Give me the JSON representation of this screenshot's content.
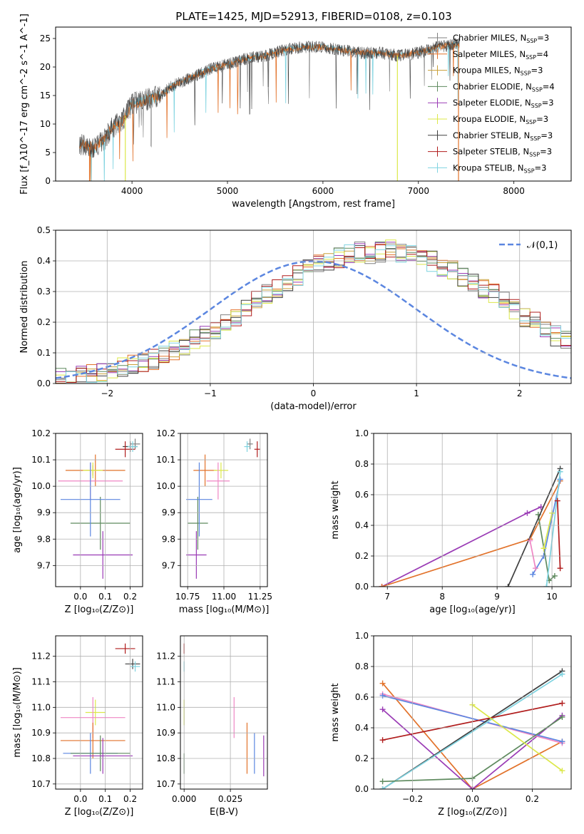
{
  "figure": {
    "title": "PLATE=1425, MJD=52913, FIBERID=0108, z=0.103"
  },
  "series_styles": [
    {
      "name": "Chabrier MILES",
      "nssp": "3",
      "color": "#808080"
    },
    {
      "name": "Salpeter MILES",
      "nssp": "4",
      "color": "#e2722a"
    },
    {
      "name": "Kroupa MILES",
      "nssp": "3",
      "color": "#c9a13a"
    },
    {
      "name": "Chabrier ELODIE",
      "nssp": "4",
      "color": "#5e8a5e"
    },
    {
      "name": "Salpeter ELODIE",
      "nssp": "3",
      "color": "#9a3bb5"
    },
    {
      "name": "Kroupa ELODIE",
      "nssp": "3",
      "color": "#dce84a"
    },
    {
      "name": "Chabrier STELIB",
      "nssp": "3",
      "color": "#404040"
    },
    {
      "name": "Salpeter STELIB",
      "nssp": "3",
      "color": "#b01c1c"
    },
    {
      "name": "Kroupa STELIB",
      "nssp": "3",
      "color": "#7fd3e0"
    }
  ],
  "chart_data": [
    {
      "id": "spectrum",
      "type": "line",
      "xlabel": "wavelength [Angstrom, rest frame]",
      "ylabel": "Flux [f_λ10^-17 erg cm^-2 s^-1 A^-1]",
      "xlim": [
        3200,
        8600
      ],
      "ylim": [
        0,
        27
      ],
      "xticks": [
        4000,
        5000,
        6000,
        7000,
        8000
      ],
      "yticks": [
        0,
        5,
        10,
        15,
        20,
        25
      ],
      "grid": false,
      "legend_position": "right",
      "continuum": {
        "x": [
          3450,
          3600,
          3700,
          3800,
          3900,
          4000,
          4100,
          4200,
          4300,
          4400,
          4600,
          4800,
          5000,
          5200,
          5400,
          5600,
          5800,
          6000,
          6200,
          6400,
          6600,
          6800,
          7000,
          7200,
          7400
        ],
        "y": [
          6.5,
          5.8,
          7.0,
          9.5,
          10.5,
          13.5,
          14.0,
          14.5,
          15.0,
          16.5,
          18.0,
          19.5,
          20.5,
          21.5,
          22.0,
          23.0,
          23.5,
          23.5,
          23.0,
          22.5,
          22.5,
          22.0,
          22.5,
          23.5,
          24.0
        ]
      },
      "dips": [
        {
          "x": 3555,
          "y": 0.0,
          "series": "Salpeter MILES"
        },
        {
          "x": 3930,
          "y": 0.0,
          "series": "Kroupa ELODIE"
        },
        {
          "x": 6780,
          "y": 0.0,
          "series": "Kroupa ELODIE"
        },
        {
          "x": 7420,
          "y": 0.0,
          "series": "Salpeter MILES"
        }
      ]
    },
    {
      "id": "residual-histogram",
      "type": "bar",
      "xlabel": "(data-model)/error",
      "ylabel": "Normed distribution",
      "xlim": [
        -2.5,
        2.5
      ],
      "ylim": [
        0,
        0.5
      ],
      "xticks": [
        -2,
        -1,
        0,
        1,
        2
      ],
      "yticks": [
        0.0,
        0.1,
        0.2,
        0.3,
        0.4,
        0.5
      ],
      "grid": true,
      "legend_position": "top-right",
      "legend": [
        "𝒩(0,1)"
      ],
      "bin_width": 0.1,
      "bin_start": -2.5,
      "base_series": "Chabrier MILES",
      "base_values": [
        0.02,
        0.025,
        0.03,
        0.035,
        0.04,
        0.045,
        0.05,
        0.06,
        0.07,
        0.08,
        0.09,
        0.105,
        0.12,
        0.14,
        0.155,
        0.175,
        0.2,
        0.22,
        0.245,
        0.27,
        0.29,
        0.31,
        0.33,
        0.35,
        0.37,
        0.385,
        0.4,
        0.41,
        0.42,
        0.43,
        0.42,
        0.43,
        0.44,
        0.43,
        0.425,
        0.41,
        0.4,
        0.38,
        0.37,
        0.35,
        0.33,
        0.31,
        0.29,
        0.27,
        0.24,
        0.22,
        0.2,
        0.175,
        0.155,
        0.135,
        0.115,
        0.1,
        0.085,
        0.07,
        0.06,
        0.05,
        0.045,
        0.04,
        0.035,
        0.03
      ],
      "gaussian": {
        "mean": 0,
        "sigma": 1,
        "name": "𝒩(0,1)"
      }
    },
    {
      "id": "age-vs-Z",
      "type": "scatter",
      "xlabel": "Z [log₁₀(Z/Z⊙)]",
      "ylabel": "age [log₁₀(age/yr)]",
      "xlim": [
        -0.1,
        0.25
      ],
      "ylim": [
        9.62,
        10.2
      ],
      "xticks": [
        0.0,
        0.1,
        0.2
      ],
      "yticks": [
        9.7,
        9.8,
        9.9,
        10.0,
        10.1,
        10.2
      ],
      "grid": true,
      "points": [
        {
          "series": "Chabrier MILES",
          "x": 0.22,
          "y": 10.16,
          "xerr": 0.02,
          "yerr": 0.02
        },
        {
          "series": "Salpeter MILES",
          "x": 0.06,
          "y": 10.06,
          "xerr": 0.12,
          "yerr": 0.06
        },
        {
          "series": "Kroupa MILES",
          "x": 0.05,
          "y": 10.06,
          "xerr": 0.03,
          "yerr": 0.02
        },
        {
          "series": "Chabrier ELODIE",
          "x": 0.08,
          "y": 9.86,
          "xerr": 0.12,
          "yerr": 0.1
        },
        {
          "series": "Salpeter ELODIE",
          "x": 0.09,
          "y": 9.74,
          "xerr": 0.12,
          "yerr": 0.09
        },
        {
          "series": "Kroupa ELODIE",
          "x": 0.05,
          "y": 10.06,
          "xerr": 0.04,
          "yerr": 0.03
        },
        {
          "series": "Chabrier STELIB",
          "x": 0.2,
          "y": 10.15,
          "xerr": 0.03,
          "yerr": 0.02
        },
        {
          "series": "Salpeter STELIB",
          "x": 0.18,
          "y": 10.14,
          "xerr": 0.04,
          "yerr": 0.03
        },
        {
          "series": "Kroupa STELIB",
          "x": 0.21,
          "y": 10.15,
          "xerr": 0.02,
          "yerr": 0.02
        },
        {
          "series": "Salpeter ELODIE",
          "x": 0.04,
          "y": 10.02,
          "xerr": 0.13,
          "yerr": 0.07,
          "color": "#ef86c4"
        },
        {
          "series": "Kroupa MILES",
          "x": 0.04,
          "y": 9.95,
          "xerr": 0.12,
          "yerr": 0.14,
          "color": "#5b86e0"
        }
      ]
    },
    {
      "id": "age-vs-mass",
      "type": "scatter",
      "xlabel": "mass [log₁₀(M/M⊙)]",
      "ylabel": "",
      "xlim": [
        10.7,
        11.3
      ],
      "ylim": [
        9.62,
        10.2
      ],
      "xticks": [
        10.75,
        11.0,
        11.25
      ],
      "yticks": [
        9.7,
        9.8,
        9.9,
        10.0,
        10.1,
        10.2
      ],
      "grid": true,
      "points": [
        {
          "series": "Chabrier MILES",
          "x": 11.18,
          "y": 10.16,
          "xerr": 0.02,
          "yerr": 0.02
        },
        {
          "series": "Salpeter MILES",
          "x": 10.87,
          "y": 10.06,
          "xerr": 0.08,
          "yerr": 0.06
        },
        {
          "series": "Kroupa ELODIE",
          "x": 10.98,
          "y": 10.06,
          "xerr": 0.05,
          "yerr": 0.03
        },
        {
          "series": "Chabrier ELODIE",
          "x": 10.82,
          "y": 9.86,
          "xerr": 0.07,
          "yerr": 0.1
        },
        {
          "series": "Salpeter ELODIE",
          "x": 10.81,
          "y": 9.74,
          "xerr": 0.07,
          "yerr": 0.09
        },
        {
          "series": "Salpeter STELIB",
          "x": 11.23,
          "y": 10.14,
          "xerr": 0.02,
          "yerr": 0.03
        },
        {
          "series": "Kroupa STELIB",
          "x": 11.16,
          "y": 10.15,
          "xerr": 0.02,
          "yerr": 0.02
        },
        {
          "series": "Salpeter ELODIE",
          "x": 10.96,
          "y": 10.02,
          "xerr": 0.08,
          "yerr": 0.07,
          "color": "#ef86c4"
        },
        {
          "series": "Kroupa MILES",
          "x": 10.83,
          "y": 9.95,
          "xerr": 0.09,
          "yerr": 0.14,
          "color": "#5b86e0"
        }
      ]
    },
    {
      "id": "weight-vs-age",
      "type": "line",
      "xlabel": "age [log₁₀(age/yr)]",
      "ylabel": "mass weight",
      "xlim": [
        6.75,
        10.35
      ],
      "ylim": [
        0,
        1
      ],
      "xticks": [
        7,
        8,
        9,
        10
      ],
      "yticks": [
        0.0,
        0.2,
        0.4,
        0.6,
        0.8,
        1.0
      ],
      "grid": true,
      "series": [
        {
          "name": "Salpeter ELODIE",
          "x": [
            6.9,
            9.55,
            9.8
          ],
          "y": [
            0.0,
            0.48,
            0.52
          ]
        },
        {
          "name": "Salpeter MILES",
          "x": [
            6.9,
            9.6,
            10.15
          ],
          "y": [
            0.0,
            0.31,
            0.69
          ]
        },
        {
          "name": "Kroupa MILES",
          "x": [
            9.65,
            9.85,
            10.15
          ],
          "y": [
            0.08,
            0.2,
            0.7
          ],
          "color": "#5b86e0"
        },
        {
          "name": "Chabrier ELODIE",
          "x": [
            9.75,
            9.95,
            10.05
          ],
          "y": [
            0.47,
            0.04,
            0.07
          ]
        },
        {
          "name": "Chabrier STELIB",
          "x": [
            9.2,
            10.15
          ],
          "y": [
            0.0,
            0.77
          ]
        },
        {
          "name": "Kroupa STELIB",
          "x": [
            9.9,
            10.15
          ],
          "y": [
            0.0,
            0.75
          ]
        },
        {
          "name": "Salpeter STELIB",
          "x": [
            10.1,
            10.15
          ],
          "y": [
            0.56,
            0.12
          ]
        },
        {
          "name": "Kroupa ELODIE",
          "x": [
            9.85,
            10.0
          ],
          "y": [
            0.25,
            0.48
          ]
        },
        {
          "name": "Salpeter ELODIE",
          "x": [
            9.6,
            9.7
          ],
          "y": [
            0.3,
            0.12
          ],
          "color": "#ef86c4"
        }
      ]
    },
    {
      "id": "mass-vs-Z",
      "type": "scatter",
      "xlabel": "Z [log₁₀(Z/Z⊙)]",
      "ylabel": "mass [log₁₀(M/M⊙)]",
      "xlim": [
        -0.1,
        0.25
      ],
      "ylim": [
        10.68,
        11.28
      ],
      "xticks": [
        0.0,
        0.1,
        0.2
      ],
      "yticks": [
        10.7,
        10.8,
        10.9,
        11.0,
        11.1,
        11.2
      ],
      "grid": true,
      "points": [
        {
          "series": "Salpeter STELIB",
          "x": 0.18,
          "y": 11.23,
          "xerr": 0.04,
          "yerr": 0.02
        },
        {
          "series": "Chabrier STELIB",
          "x": 0.21,
          "y": 11.17,
          "xerr": 0.03,
          "yerr": 0.02
        },
        {
          "series": "Kroupa STELIB",
          "x": 0.22,
          "y": 11.16,
          "xerr": 0.02,
          "yerr": 0.02
        },
        {
          "series": "Kroupa ELODIE",
          "x": 0.06,
          "y": 10.98,
          "xerr": 0.04,
          "yerr": 0.05
        },
        {
          "series": "Salpeter ELODIE",
          "x": 0.05,
          "y": 10.96,
          "xerr": 0.13,
          "yerr": 0.08,
          "color": "#ef86c4"
        },
        {
          "series": "Salpeter MILES",
          "x": 0.05,
          "y": 10.87,
          "xerr": 0.13,
          "yerr": 0.07
        },
        {
          "series": "Kroupa MILES",
          "x": 0.04,
          "y": 10.82,
          "xerr": 0.11,
          "yerr": 0.08,
          "color": "#5b86e0"
        },
        {
          "series": "Chabrier ELODIE",
          "x": 0.08,
          "y": 10.82,
          "xerr": 0.12,
          "yerr": 0.07
        },
        {
          "series": "Salpeter ELODIE",
          "x": 0.09,
          "y": 10.81,
          "xerr": 0.12,
          "yerr": 0.07
        }
      ]
    },
    {
      "id": "mass-vs-ebv",
      "type": "scatter",
      "xlabel": "E(B-V)",
      "ylabel": "",
      "xlim": [
        -0.002,
        0.045
      ],
      "ylim": [
        10.68,
        11.28
      ],
      "xticks": [
        0.0,
        0.025
      ],
      "xticklabels": [
        "0.000",
        "0.025"
      ],
      "yticks": [
        10.7,
        10.8,
        10.9,
        11.0,
        11.1,
        11.2
      ],
      "grid": true,
      "points": [
        {
          "series": "Salpeter STELIB",
          "x": 0.0,
          "y": 11.23,
          "xerr": 0.0,
          "yerr": 0.02
        },
        {
          "series": "Kroupa STELIB",
          "x": 0.0,
          "y": 11.16,
          "xerr": 0.0,
          "yerr": 0.02
        },
        {
          "series": "Kroupa ELODIE",
          "x": 0.0,
          "y": 10.98,
          "xerr": 0.0,
          "yerr": 0.05
        },
        {
          "series": "Chabrier ELODIE",
          "x": 0.0,
          "y": 10.78,
          "xerr": 0.0,
          "yerr": 0.04
        },
        {
          "series": "Salpeter ELODIE",
          "x": 0.027,
          "y": 10.96,
          "xerr": 0.0,
          "yerr": 0.08,
          "color": "#ef86c4"
        },
        {
          "series": "Salpeter MILES",
          "x": 0.034,
          "y": 10.84,
          "xerr": 0.0,
          "yerr": 0.1
        },
        {
          "series": "Kroupa MILES",
          "x": 0.038,
          "y": 10.82,
          "xerr": 0.0,
          "yerr": 0.08,
          "color": "#5b86e0"
        },
        {
          "series": "Salpeter ELODIE",
          "x": 0.043,
          "y": 10.81,
          "xerr": 0.0,
          "yerr": 0.08
        }
      ]
    },
    {
      "id": "weight-vs-Z",
      "type": "line",
      "xlabel": "Z [log₁₀(Z/Z⊙)]",
      "ylabel": "mass weight",
      "xlim": [
        -0.33,
        0.33
      ],
      "ylim": [
        0,
        1
      ],
      "xticks": [
        -0.2,
        0.0,
        0.2
      ],
      "yticks": [
        0.0,
        0.2,
        0.4,
        0.6,
        0.8,
        1.0
      ],
      "grid": true,
      "series": [
        {
          "name": "Salpeter MILES",
          "x": [
            -0.3,
            0.0,
            0.3
          ],
          "y": [
            0.69,
            0.0,
            0.31
          ]
        },
        {
          "name": "Salpeter ELODIE",
          "x": [
            -0.3,
            0.0,
            0.3
          ],
          "y": [
            0.52,
            0.0,
            0.48
          ]
        },
        {
          "name": "Salpeter ELODIE",
          "x": [
            -0.3,
            0.3
          ],
          "y": [
            0.62,
            0.3
          ],
          "color": "#ef86c4"
        },
        {
          "name": "Kroupa MILES",
          "x": [
            -0.3,
            0.3
          ],
          "y": [
            0.61,
            0.31
          ],
          "color": "#5b86e0"
        },
        {
          "name": "Chabrier STELIB",
          "x": [
            -0.3,
            0.3
          ],
          "y": [
            0.0,
            0.77
          ]
        },
        {
          "name": "Kroupa STELIB",
          "x": [
            -0.3,
            0.3
          ],
          "y": [
            0.0,
            0.75
          ]
        },
        {
          "name": "Salpeter STELIB",
          "x": [
            -0.3,
            0.3
          ],
          "y": [
            0.32,
            0.56
          ]
        },
        {
          "name": "Chabrier ELODIE",
          "x": [
            -0.3,
            0.0,
            0.3
          ],
          "y": [
            0.05,
            0.07,
            0.47
          ]
        },
        {
          "name": "Kroupa ELODIE",
          "x": [
            0.0,
            0.3
          ],
          "y": [
            0.55,
            0.12
          ]
        }
      ]
    }
  ]
}
